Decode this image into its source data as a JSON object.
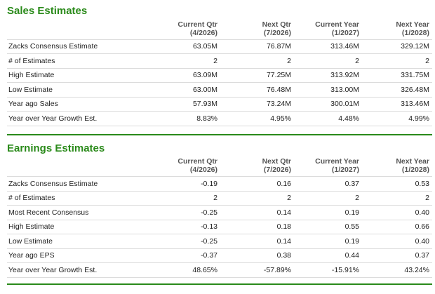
{
  "sales": {
    "title": "Sales Estimates",
    "columns": [
      {
        "l1": "Current Qtr",
        "l2": "(4/2026)"
      },
      {
        "l1": "Next Qtr",
        "l2": "(7/2026)"
      },
      {
        "l1": "Current Year",
        "l2": "(1/2027)"
      },
      {
        "l1": "Next Year",
        "l2": "(1/2028)"
      }
    ],
    "rows": [
      {
        "label": "Zacks Consensus Estimate",
        "values": [
          "63.05M",
          "76.87M",
          "313.46M",
          "329.12M"
        ]
      },
      {
        "label": "# of Estimates",
        "values": [
          "2",
          "2",
          "2",
          "2"
        ]
      },
      {
        "label": "High Estimate",
        "values": [
          "63.09M",
          "77.25M",
          "313.92M",
          "331.75M"
        ]
      },
      {
        "label": "Low Estimate",
        "values": [
          "63.00M",
          "76.48M",
          "313.00M",
          "326.48M"
        ]
      },
      {
        "label": "Year ago Sales",
        "values": [
          "57.93M",
          "73.24M",
          "300.01M",
          "313.46M"
        ]
      },
      {
        "label": "Year over Year Growth Est.",
        "values": [
          "8.83%",
          "4.95%",
          "4.48%",
          "4.99%"
        ]
      }
    ]
  },
  "earnings": {
    "title": "Earnings Estimates",
    "columns": [
      {
        "l1": "Current Qtr",
        "l2": "(4/2026)"
      },
      {
        "l1": "Next Qtr",
        "l2": "(7/2026)"
      },
      {
        "l1": "Current Year",
        "l2": "(1/2027)"
      },
      {
        "l1": "Next Year",
        "l2": "(1/2028)"
      }
    ],
    "rows": [
      {
        "label": "Zacks Consensus Estimate",
        "values": [
          "-0.19",
          "0.16",
          "0.37",
          "0.53"
        ]
      },
      {
        "label": "# of Estimates",
        "values": [
          "2",
          "2",
          "2",
          "2"
        ]
      },
      {
        "label": "Most Recent Consensus",
        "values": [
          "-0.25",
          "0.14",
          "0.19",
          "0.40"
        ]
      },
      {
        "label": "High Estimate",
        "values": [
          "-0.13",
          "0.18",
          "0.55",
          "0.66"
        ]
      },
      {
        "label": "Low Estimate",
        "values": [
          "-0.25",
          "0.14",
          "0.19",
          "0.40"
        ]
      },
      {
        "label": "Year ago EPS",
        "values": [
          "-0.37",
          "0.38",
          "0.44",
          "0.37"
        ]
      },
      {
        "label": "Year over Year Growth Est.",
        "values": [
          "48.65%",
          "-57.89%",
          "-15.91%",
          "43.24%"
        ]
      }
    ]
  },
  "colors": {
    "accent": "#2a8a1a",
    "rule": "#dcdcdc"
  }
}
